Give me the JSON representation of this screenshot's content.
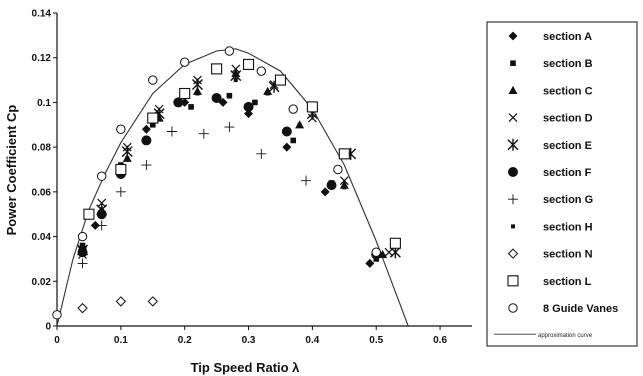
{
  "chart_data": {
    "type": "scatter",
    "xlabel": "Tip Speed Ratio λ",
    "ylabel": "Power Coefficient Cp",
    "xlim": [
      0,
      0.65
    ],
    "ylim": [
      0,
      0.14
    ],
    "x_ticks": [
      "0",
      "0.1",
      "0.2",
      "0.3",
      "0.4",
      "0.5",
      "0.6"
    ],
    "y_ticks": [
      "0",
      "0.02",
      "0.04",
      "0.06",
      "0.08",
      "0.1",
      "0.12",
      "0.14"
    ],
    "grid": false,
    "legend_position": "right",
    "series": [
      {
        "name": "section A",
        "marker": "diamond-filled",
        "points": [
          [
            0.04,
            0.035
          ],
          [
            0.06,
            0.045
          ],
          [
            0.1,
            0.07
          ],
          [
            0.14,
            0.088
          ],
          [
            0.2,
            0.1
          ],
          [
            0.26,
            0.1
          ],
          [
            0.3,
            0.095
          ],
          [
            0.36,
            0.08
          ],
          [
            0.42,
            0.06
          ],
          [
            0.49,
            0.028
          ],
          [
            0.5,
            0.031
          ]
        ]
      },
      {
        "name": "section B",
        "marker": "square-small-filled",
        "points": [
          [
            0.04,
            0.036
          ],
          [
            0.07,
            0.05
          ],
          [
            0.1,
            0.072
          ],
          [
            0.15,
            0.09
          ],
          [
            0.21,
            0.098
          ],
          [
            0.27,
            0.103
          ],
          [
            0.31,
            0.1
          ],
          [
            0.37,
            0.083
          ],
          [
            0.43,
            0.064
          ],
          [
            0.5,
            0.03
          ]
        ]
      },
      {
        "name": "section C",
        "marker": "triangle-filled",
        "points": [
          [
            0.04,
            0.034
          ],
          [
            0.07,
            0.052
          ],
          [
            0.11,
            0.075
          ],
          [
            0.16,
            0.093
          ],
          [
            0.22,
            0.105
          ],
          [
            0.28,
            0.113
          ],
          [
            0.33,
            0.105
          ],
          [
            0.38,
            0.09
          ],
          [
            0.45,
            0.063
          ],
          [
            0.51,
            0.032
          ]
        ]
      },
      {
        "name": "section D",
        "marker": "x",
        "points": [
          [
            0.04,
            0.032
          ],
          [
            0.07,
            0.055
          ],
          [
            0.11,
            0.08
          ],
          [
            0.16,
            0.097
          ],
          [
            0.22,
            0.11
          ],
          [
            0.28,
            0.115
          ],
          [
            0.34,
            0.108
          ],
          [
            0.4,
            0.093
          ],
          [
            0.45,
            0.065
          ],
          [
            0.52,
            0.033
          ]
        ]
      },
      {
        "name": "section E",
        "marker": "asterisk",
        "points": [
          [
            0.04,
            0.034
          ],
          [
            0.07,
            0.052
          ],
          [
            0.11,
            0.078
          ],
          [
            0.16,
            0.095
          ],
          [
            0.22,
            0.108
          ],
          [
            0.28,
            0.112
          ],
          [
            0.34,
            0.107
          ],
          [
            0.4,
            0.095
          ],
          [
            0.46,
            0.077
          ],
          [
            0.53,
            0.033
          ]
        ]
      },
      {
        "name": "section F",
        "marker": "circle-filled",
        "points": [
          [
            0.04,
            0.033
          ],
          [
            0.07,
            0.05
          ],
          [
            0.1,
            0.068
          ],
          [
            0.14,
            0.083
          ],
          [
            0.19,
            0.1
          ],
          [
            0.25,
            0.102
          ],
          [
            0.3,
            0.098
          ],
          [
            0.36,
            0.087
          ],
          [
            0.43,
            0.063
          ],
          [
            0.5,
            0.032
          ]
        ]
      },
      {
        "name": "section G",
        "marker": "plus",
        "points": [
          [
            0.04,
            0.028
          ],
          [
            0.07,
            0.045
          ],
          [
            0.1,
            0.06
          ],
          [
            0.14,
            0.072
          ],
          [
            0.18,
            0.087
          ],
          [
            0.23,
            0.086
          ],
          [
            0.27,
            0.089
          ],
          [
            0.32,
            0.077
          ],
          [
            0.39,
            0.065
          ]
        ]
      },
      {
        "name": "section H",
        "marker": "dot",
        "points": [
          [
            0.04,
            0.035
          ],
          [
            0.07,
            0.05
          ],
          [
            0.11,
            0.075
          ],
          [
            0.16,
            0.093
          ],
          [
            0.22,
            0.104
          ],
          [
            0.28,
            0.11
          ],
          [
            0.33,
            0.104
          ],
          [
            0.38,
            0.09
          ],
          [
            0.45,
            0.062
          ]
        ]
      },
      {
        "name": "section N",
        "marker": "diamond-open",
        "points": [
          [
            0.04,
            0.008
          ],
          [
            0.1,
            0.011
          ],
          [
            0.15,
            0.011
          ]
        ]
      },
      {
        "name": "section L",
        "marker": "square-open",
        "points": [
          [
            0.05,
            0.05
          ],
          [
            0.1,
            0.07
          ],
          [
            0.15,
            0.093
          ],
          [
            0.2,
            0.104
          ],
          [
            0.25,
            0.115
          ],
          [
            0.3,
            0.117
          ],
          [
            0.35,
            0.11
          ],
          [
            0.4,
            0.098
          ],
          [
            0.45,
            0.077
          ],
          [
            0.53,
            0.037
          ]
        ]
      },
      {
        "name": "8 Guide Vanes",
        "marker": "circle-open",
        "points": [
          [
            0,
            0.005
          ],
          [
            0.04,
            0.04
          ],
          [
            0.07,
            0.067
          ],
          [
            0.1,
            0.088
          ],
          [
            0.15,
            0.11
          ],
          [
            0.2,
            0.118
          ],
          [
            0.27,
            0.123
          ],
          [
            0.32,
            0.114
          ],
          [
            0.37,
            0.097
          ],
          [
            0.44,
            0.07
          ],
          [
            0.5,
            0.033
          ]
        ]
      }
    ],
    "curve": {
      "name": "approximation curve",
      "points": [
        [
          0,
          0
        ],
        [
          0.025,
          0.03
        ],
        [
          0.05,
          0.052
        ],
        [
          0.075,
          0.068
        ],
        [
          0.1,
          0.082
        ],
        [
          0.15,
          0.104
        ],
        [
          0.2,
          0.117
        ],
        [
          0.25,
          0.123
        ],
        [
          0.28,
          0.124
        ],
        [
          0.3,
          0.122
        ],
        [
          0.35,
          0.114
        ],
        [
          0.4,
          0.097
        ],
        [
          0.45,
          0.072
        ],
        [
          0.5,
          0.038
        ],
        [
          0.55,
          0
        ]
      ]
    }
  }
}
